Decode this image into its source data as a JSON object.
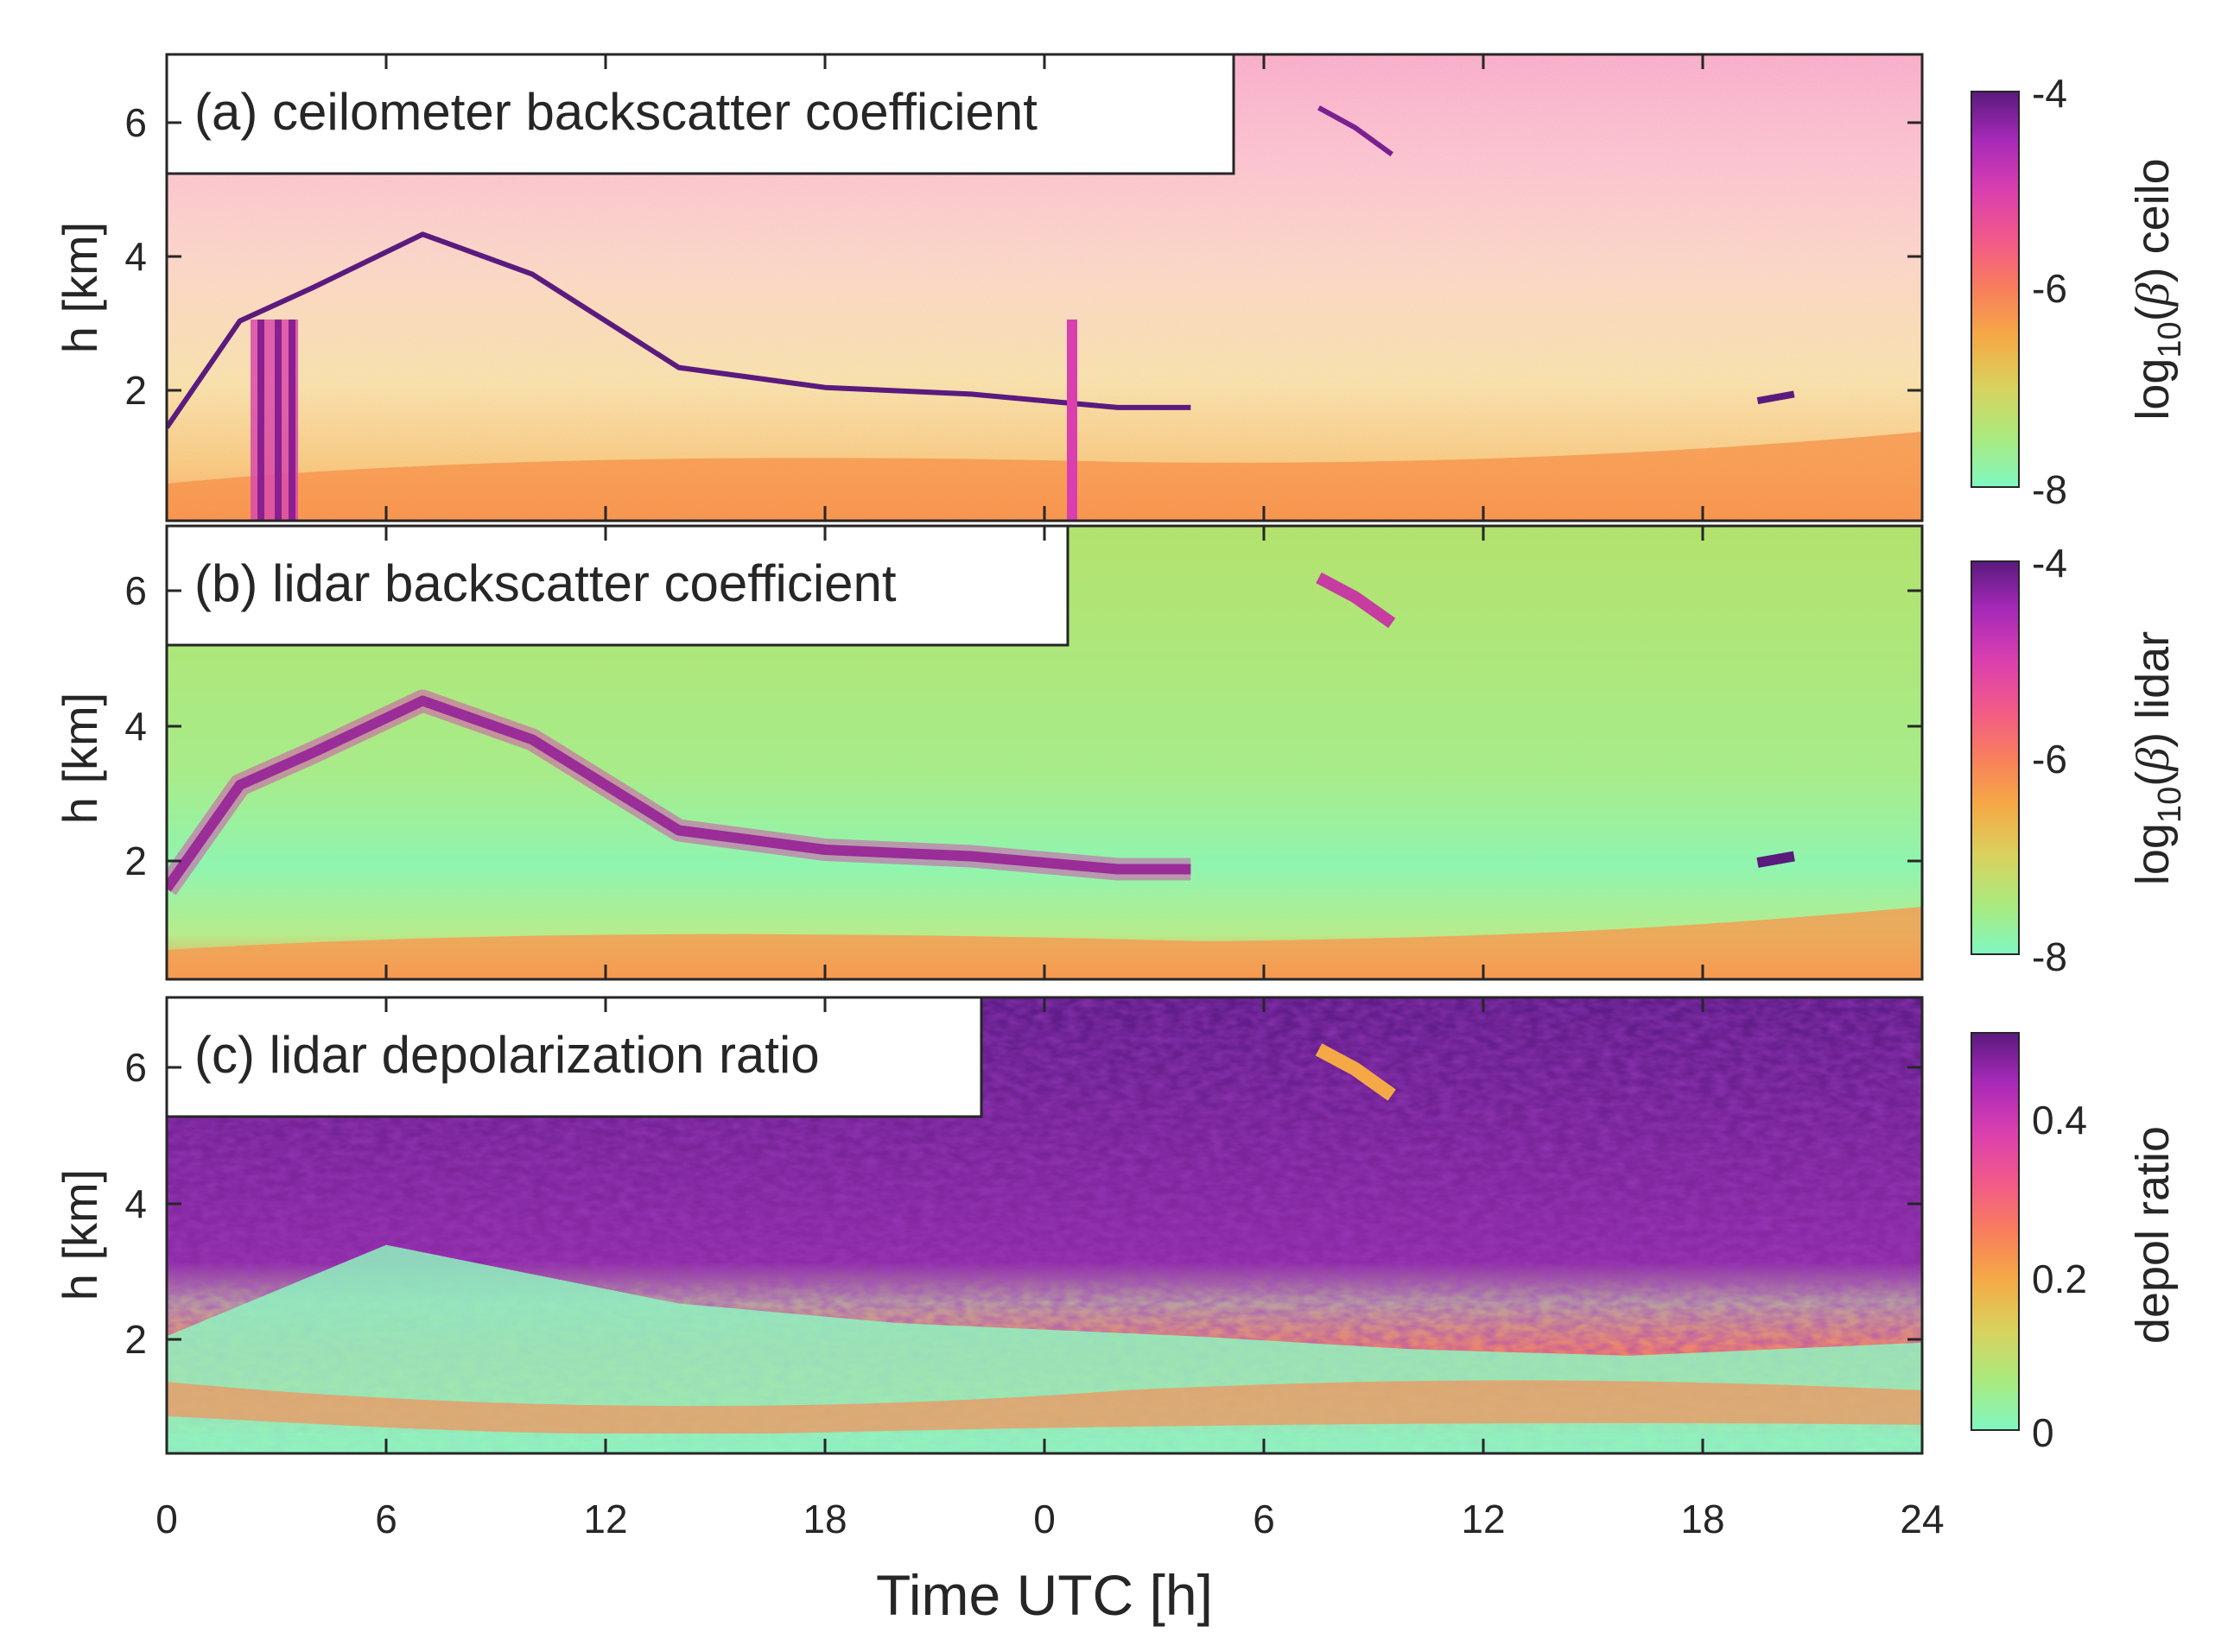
{
  "chart_data": [
    {
      "type": "heatmap",
      "panel": "a",
      "title": "(a) ceilometer backscatter coefficient",
      "ylabel": "h [km]",
      "ylim": [
        0,
        7
      ],
      "yticks": [
        2,
        4,
        6
      ],
      "xlim": [
        0,
        48
      ],
      "xtick_labels": [
        "0",
        "6",
        "12",
        "18",
        "0",
        "6",
        "12",
        "18",
        "24"
      ],
      "colorbar": {
        "label": "log10(β) ceilo",
        "range": [
          -8,
          -4
        ],
        "tick_labels": [
          "-4",
          "-6",
          "-8"
        ]
      },
      "features": [
        {
          "name": "cloud layer",
          "x": [
            0,
            2,
            4,
            7,
            10,
            14,
            18,
            22,
            26,
            28
          ],
          "h": [
            1.4,
            3.0,
            3.5,
            4.3,
            3.7,
            2.3,
            2.0,
            1.9,
            1.7,
            1.7
          ]
        },
        {
          "name": "high cloud",
          "x": [
            31.5,
            32.5,
            33.5
          ],
          "h": [
            6.2,
            5.9,
            5.5
          ]
        },
        {
          "name": "evening cloud",
          "x": [
            43.5,
            44.5
          ],
          "h": [
            1.8,
            1.9
          ]
        }
      ]
    },
    {
      "type": "heatmap",
      "panel": "b",
      "title": "(b) lidar backscatter coefficient",
      "ylabel": "h [km]",
      "ylim": [
        0,
        7
      ],
      "yticks": [
        2,
        4,
        6
      ],
      "xlim": [
        0,
        48
      ],
      "xtick_labels": [
        "0",
        "6",
        "12",
        "18",
        "0",
        "6",
        "12",
        "18",
        "24"
      ],
      "colorbar": {
        "label": "log10(β) lidar",
        "range": [
          -8,
          -4
        ],
        "tick_labels": [
          "-4",
          "-6",
          "-8"
        ]
      },
      "features": [
        {
          "name": "cloud layer",
          "x": [
            0,
            2,
            4,
            7,
            10,
            14,
            18,
            22,
            26,
            28
          ],
          "h": [
            1.4,
            3.0,
            3.5,
            4.3,
            3.7,
            2.3,
            2.0,
            1.9,
            1.7,
            1.7
          ]
        },
        {
          "name": "high cloud",
          "x": [
            31.5,
            32.5,
            33.5
          ],
          "h": [
            6.2,
            5.9,
            5.5
          ]
        },
        {
          "name": "evening cloud",
          "x": [
            43.5,
            44.5
          ],
          "h": [
            1.8,
            1.9
          ]
        }
      ]
    },
    {
      "type": "heatmap",
      "panel": "c",
      "title": "(c) lidar depolarization ratio",
      "ylabel": "h [km]",
      "ylim": [
        0,
        7
      ],
      "yticks": [
        2,
        4,
        6
      ],
      "xlim": [
        0,
        48
      ],
      "xlabel": "Time UTC [h]",
      "xtick_labels": [
        "0",
        "6",
        "12",
        "18",
        "0",
        "6",
        "12",
        "18",
        "24"
      ],
      "colorbar": {
        "label": "depol ratio",
        "range": [
          0,
          0.5
        ],
        "tick_labels": [
          "0.4",
          "0.2",
          "0"
        ]
      },
      "features": [
        {
          "name": "low depol layer top",
          "x": [
            0,
            6,
            14,
            20,
            28,
            34,
            40,
            48
          ],
          "h": [
            1.8,
            3.2,
            2.3,
            2.0,
            1.8,
            1.6,
            1.5,
            1.7
          ]
        }
      ]
    }
  ],
  "colors": {
    "colormap": [
      "#80f7c2",
      "#a8eb80",
      "#d8d25e",
      "#f5a946",
      "#f87e5c",
      "#f25a88",
      "#da3fb0",
      "#a529b8",
      "#5a1a7e"
    ]
  }
}
